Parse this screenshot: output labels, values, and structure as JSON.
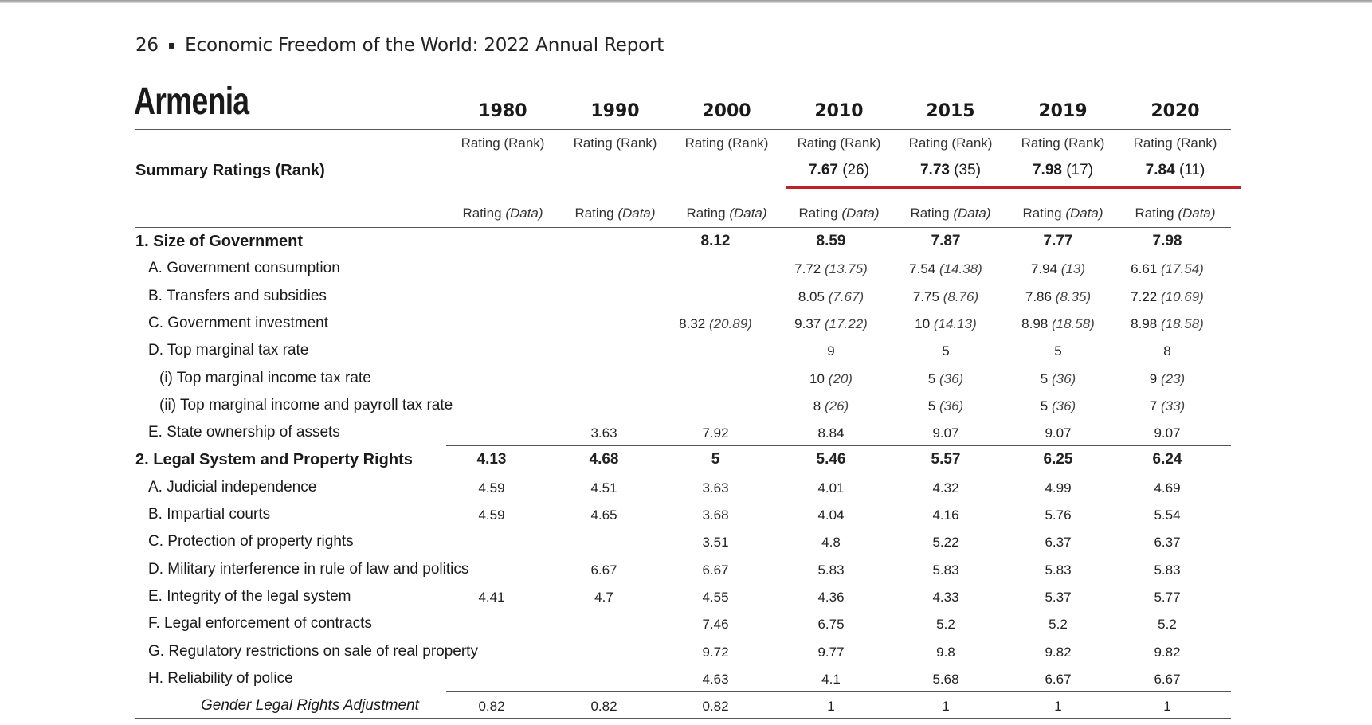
{
  "header": {
    "page_number": "26",
    "separator": "▪",
    "title": "Economic Freedom of the World: 2022 Annual Report"
  },
  "country": "Armenia",
  "years": [
    "1980",
    "1990",
    "2000",
    "2010",
    "2015",
    "2019",
    "2020"
  ],
  "summary": {
    "subheader": [
      "Rating (Rank)",
      "Rating (Rank)",
      "Rating (Rank)",
      "Rating (Rank)",
      "Rating (Rank)",
      "Rating (Rank)",
      "Rating (Rank)"
    ],
    "label": "Summary Ratings (Rank)",
    "values": [
      {
        "rating": "",
        "rank": ""
      },
      {
        "rating": "",
        "rank": ""
      },
      {
        "rating": "",
        "rank": ""
      },
      {
        "rating": "7.67",
        "rank": "(26)"
      },
      {
        "rating": "7.73",
        "rank": "(35)"
      },
      {
        "rating": "7.98",
        "rank": "(17)"
      },
      {
        "rating": "7.84",
        "rank": "(11)"
      }
    ]
  },
  "data_subheader": {
    "rating": "Rating",
    "data": "(Data)"
  },
  "rows": [
    {
      "label": "1. Size of Government",
      "level": "head",
      "cells": [
        "",
        "",
        "8.12",
        "8.59",
        "7.87",
        "7.77",
        "7.98"
      ]
    },
    {
      "label": "A. Government consumption",
      "level": "l1",
      "cells": [
        "",
        "",
        "",
        "7.72|(13.75)",
        "7.54|(14.38)",
        "7.94|(13)",
        "6.61|(17.54)"
      ]
    },
    {
      "label": "B. Transfers and subsidies",
      "level": "l1",
      "cells": [
        "",
        "",
        "",
        "8.05|(7.67)",
        "7.75|(8.76)",
        "7.86|(8.35)",
        "7.22|(10.69)"
      ]
    },
    {
      "label": "C. Government investment",
      "level": "l1",
      "cells": [
        "",
        "",
        "8.32|(20.89)",
        "9.37|(17.22)",
        "10|(14.13)",
        "8.98|(18.58)",
        "8.98|(18.58)"
      ]
    },
    {
      "label": "D. Top marginal tax rate",
      "level": "l1",
      "cells": [
        "",
        "",
        "",
        "9",
        "5",
        "5",
        "8"
      ]
    },
    {
      "label": "(i) Top marginal income tax rate",
      "level": "l2",
      "cells": [
        "",
        "",
        "",
        "10|(20)",
        "5|(36)",
        "5|(36)",
        "9|(23)"
      ]
    },
    {
      "label": "(ii) Top marginal income and payroll tax rate",
      "level": "l2",
      "cells": [
        "",
        "",
        "",
        "8|(26)",
        "5|(36)",
        "5|(36)",
        "7|(33)"
      ]
    },
    {
      "label": "E. State ownership of assets",
      "level": "l1",
      "cells": [
        "",
        "3.63",
        "7.92",
        "8.84",
        "9.07",
        "9.07",
        "9.07"
      ]
    },
    {
      "label": "2. Legal System and Property Rights",
      "level": "head",
      "cells": [
        "4.13",
        "4.68",
        "5",
        "5.46",
        "5.57",
        "6.25",
        "6.24"
      ]
    },
    {
      "label": "A. Judicial independence",
      "level": "l1",
      "cells": [
        "4.59",
        "4.51",
        "3.63",
        "4.01",
        "4.32",
        "4.99",
        "4.69"
      ]
    },
    {
      "label": "B. Impartial courts",
      "level": "l1",
      "cells": [
        "4.59",
        "4.65",
        "3.68",
        "4.04",
        "4.16",
        "5.76",
        "5.54"
      ]
    },
    {
      "label": "C. Protection of property rights",
      "level": "l1",
      "cells": [
        "",
        "",
        "3.51",
        "4.8",
        "5.22",
        "6.37",
        "6.37"
      ]
    },
    {
      "label": "D. Military interference in rule of law and politics",
      "level": "l1",
      "cells": [
        "",
        "6.67",
        "6.67",
        "5.83",
        "5.83",
        "5.83",
        "5.83"
      ]
    },
    {
      "label": "E. Integrity of the legal system",
      "level": "l1",
      "cells": [
        "4.41",
        "4.7",
        "4.55",
        "4.36",
        "4.33",
        "5.37",
        "5.77"
      ]
    },
    {
      "label": "F. Legal enforcement of contracts",
      "level": "l1",
      "cells": [
        "",
        "",
        "7.46",
        "6.75",
        "5.2",
        "5.2",
        "5.2"
      ]
    },
    {
      "label": "G. Regulatory restrictions on sale of real property",
      "level": "l1",
      "cells": [
        "",
        "",
        "9.72",
        "9.77",
        "9.8",
        "9.82",
        "9.82"
      ]
    },
    {
      "label": "H. Reliability of police",
      "level": "l1",
      "cells": [
        "",
        "",
        "4.63",
        "4.1",
        "5.68",
        "6.67",
        "6.67"
      ]
    },
    {
      "label": "Gender Legal Rights Adjustment",
      "level": "l3",
      "cells": [
        "0.82",
        "0.82",
        "0.82",
        "1",
        "1",
        "1",
        "1"
      ]
    }
  ]
}
